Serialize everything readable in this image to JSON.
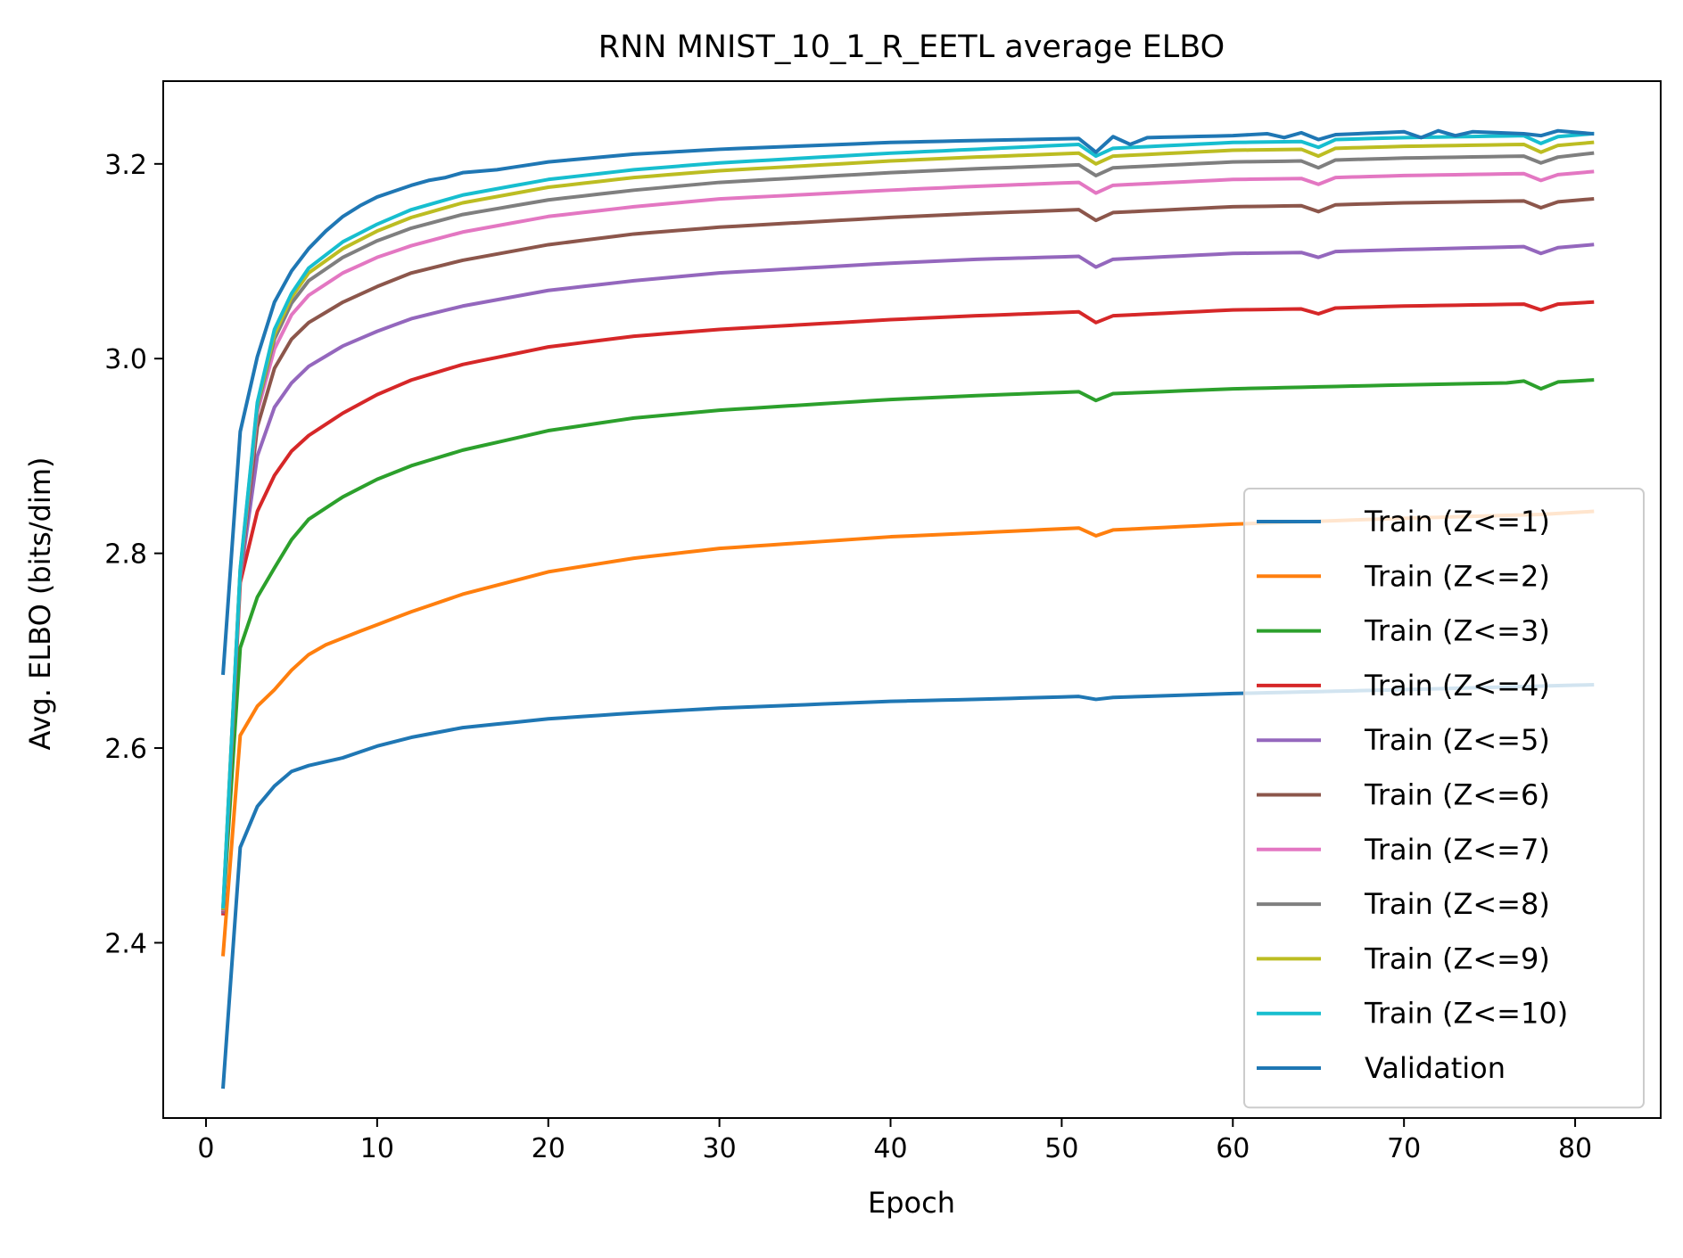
{
  "chart_data": {
    "type": "line",
    "title": "RNN MNIST_10_1_R_EETL average ELBO",
    "xlabel": "Epoch",
    "ylabel": "Avg. ELBO (bits/dim)",
    "xlim": [
      -2.5,
      85
    ],
    "ylim": [
      2.22,
      3.285
    ],
    "xticks": [
      0,
      10,
      20,
      30,
      40,
      50,
      60,
      70,
      80
    ],
    "xtick_labels": [
      "0",
      "10",
      "20",
      "30",
      "40",
      "50",
      "60",
      "70",
      "80"
    ],
    "yticks": [
      2.4,
      2.6,
      2.8,
      3.0,
      3.2
    ],
    "ytick_labels": [
      "2.4",
      "2.6",
      "2.8",
      "3.0",
      "3.2"
    ],
    "grid": false,
    "legend_position": "lower-right",
    "x_start": 1,
    "x_end": 81,
    "series": [
      {
        "name": "Train (Z<=1)",
        "color": "#1f77b4",
        "points": [
          [
            1,
            2.252
          ],
          [
            2,
            2.498
          ],
          [
            3,
            2.54
          ],
          [
            4,
            2.561
          ],
          [
            5,
            2.576
          ],
          [
            6,
            2.582
          ],
          [
            8,
            2.59
          ],
          [
            10,
            2.602
          ],
          [
            12,
            2.611
          ],
          [
            15,
            2.621
          ],
          [
            20,
            2.63
          ],
          [
            25,
            2.636
          ],
          [
            30,
            2.641
          ],
          [
            40,
            2.648
          ],
          [
            45,
            2.65
          ],
          [
            51,
            2.653
          ],
          [
            52,
            2.65
          ],
          [
            53,
            2.652
          ],
          [
            60,
            2.656
          ],
          [
            70,
            2.66
          ],
          [
            81,
            2.665
          ]
        ]
      },
      {
        "name": "Train (Z<=2)",
        "color": "#ff7f0e",
        "points": [
          [
            1,
            2.388
          ],
          [
            2,
            2.613
          ],
          [
            3,
            2.643
          ],
          [
            4,
            2.66
          ],
          [
            5,
            2.68
          ],
          [
            6,
            2.696
          ],
          [
            7,
            2.706
          ],
          [
            9,
            2.72
          ],
          [
            12,
            2.74
          ],
          [
            15,
            2.758
          ],
          [
            20,
            2.781
          ],
          [
            25,
            2.795
          ],
          [
            30,
            2.805
          ],
          [
            40,
            2.817
          ],
          [
            45,
            2.821
          ],
          [
            51,
            2.826
          ],
          [
            52,
            2.818
          ],
          [
            53,
            2.824
          ],
          [
            60,
            2.83
          ],
          [
            70,
            2.836
          ],
          [
            78,
            2.84
          ],
          [
            81,
            2.843
          ]
        ]
      },
      {
        "name": "Train (Z<=3)",
        "color": "#2ca02c",
        "points": [
          [
            1,
            2.432
          ],
          [
            2,
            2.703
          ],
          [
            3,
            2.755
          ],
          [
            4,
            2.785
          ],
          [
            5,
            2.814
          ],
          [
            6,
            2.835
          ],
          [
            8,
            2.858
          ],
          [
            10,
            2.876
          ],
          [
            12,
            2.89
          ],
          [
            15,
            2.906
          ],
          [
            20,
            2.926
          ],
          [
            25,
            2.939
          ],
          [
            30,
            2.947
          ],
          [
            40,
            2.958
          ],
          [
            45,
            2.962
          ],
          [
            51,
            2.966
          ],
          [
            52,
            2.957
          ],
          [
            53,
            2.964
          ],
          [
            60,
            2.969
          ],
          [
            70,
            2.973
          ],
          [
            76,
            2.975
          ],
          [
            77,
            2.977
          ],
          [
            78,
            2.969
          ],
          [
            79,
            2.976
          ],
          [
            81,
            2.978
          ]
        ]
      },
      {
        "name": "Train (Z<=4)",
        "color": "#d62728",
        "points": [
          [
            1,
            2.43
          ],
          [
            2,
            2.77
          ],
          [
            3,
            2.843
          ],
          [
            4,
            2.88
          ],
          [
            5,
            2.905
          ],
          [
            6,
            2.921
          ],
          [
            8,
            2.944
          ],
          [
            10,
            2.963
          ],
          [
            12,
            2.978
          ],
          [
            15,
            2.994
          ],
          [
            20,
            3.012
          ],
          [
            25,
            3.023
          ],
          [
            30,
            3.03
          ],
          [
            40,
            3.04
          ],
          [
            45,
            3.044
          ],
          [
            51,
            3.048
          ],
          [
            52,
            3.037
          ],
          [
            53,
            3.044
          ],
          [
            60,
            3.05
          ],
          [
            64,
            3.051
          ],
          [
            65,
            3.046
          ],
          [
            66,
            3.052
          ],
          [
            70,
            3.054
          ],
          [
            77,
            3.056
          ],
          [
            78,
            3.05
          ],
          [
            79,
            3.056
          ],
          [
            81,
            3.058
          ]
        ]
      },
      {
        "name": "Train (Z<=5)",
        "color": "#9467bd",
        "points": [
          [
            1,
            2.432
          ],
          [
            2,
            2.775
          ],
          [
            3,
            2.9
          ],
          [
            4,
            2.95
          ],
          [
            5,
            2.975
          ],
          [
            6,
            2.992
          ],
          [
            8,
            3.013
          ],
          [
            10,
            3.028
          ],
          [
            12,
            3.041
          ],
          [
            15,
            3.054
          ],
          [
            20,
            3.07
          ],
          [
            25,
            3.08
          ],
          [
            30,
            3.088
          ],
          [
            40,
            3.098
          ],
          [
            45,
            3.102
          ],
          [
            51,
            3.105
          ],
          [
            52,
            3.094
          ],
          [
            53,
            3.102
          ],
          [
            60,
            3.108
          ],
          [
            64,
            3.109
          ],
          [
            65,
            3.104
          ],
          [
            66,
            3.11
          ],
          [
            70,
            3.112
          ],
          [
            77,
            3.115
          ],
          [
            78,
            3.108
          ],
          [
            79,
            3.114
          ],
          [
            81,
            3.117
          ]
        ]
      },
      {
        "name": "Train (Z<=6)",
        "color": "#8c564b",
        "points": [
          [
            1,
            2.433
          ],
          [
            2,
            2.778
          ],
          [
            3,
            2.93
          ],
          [
            4,
            2.99
          ],
          [
            5,
            3.02
          ],
          [
            6,
            3.037
          ],
          [
            8,
            3.058
          ],
          [
            10,
            3.074
          ],
          [
            12,
            3.088
          ],
          [
            15,
            3.101
          ],
          [
            20,
            3.117
          ],
          [
            25,
            3.128
          ],
          [
            30,
            3.135
          ],
          [
            40,
            3.145
          ],
          [
            45,
            3.149
          ],
          [
            51,
            3.153
          ],
          [
            52,
            3.142
          ],
          [
            53,
            3.15
          ],
          [
            60,
            3.156
          ],
          [
            64,
            3.157
          ],
          [
            65,
            3.151
          ],
          [
            66,
            3.158
          ],
          [
            70,
            3.16
          ],
          [
            77,
            3.162
          ],
          [
            78,
            3.155
          ],
          [
            79,
            3.161
          ],
          [
            81,
            3.164
          ]
        ]
      },
      {
        "name": "Train (Z<=7)",
        "color": "#e377c2",
        "points": [
          [
            1,
            2.434
          ],
          [
            2,
            2.78
          ],
          [
            3,
            2.945
          ],
          [
            4,
            3.01
          ],
          [
            5,
            3.045
          ],
          [
            6,
            3.065
          ],
          [
            8,
            3.088
          ],
          [
            10,
            3.104
          ],
          [
            12,
            3.116
          ],
          [
            15,
            3.13
          ],
          [
            20,
            3.146
          ],
          [
            25,
            3.156
          ],
          [
            30,
            3.164
          ],
          [
            40,
            3.173
          ],
          [
            45,
            3.177
          ],
          [
            51,
            3.181
          ],
          [
            52,
            3.17
          ],
          [
            53,
            3.178
          ],
          [
            60,
            3.184
          ],
          [
            64,
            3.185
          ],
          [
            65,
            3.179
          ],
          [
            66,
            3.186
          ],
          [
            70,
            3.188
          ],
          [
            77,
            3.19
          ],
          [
            78,
            3.183
          ],
          [
            79,
            3.189
          ],
          [
            81,
            3.192
          ]
        ]
      },
      {
        "name": "Train (Z<=8)",
        "color": "#7f7f7f",
        "points": [
          [
            1,
            2.435
          ],
          [
            2,
            2.782
          ],
          [
            3,
            2.95
          ],
          [
            4,
            3.02
          ],
          [
            5,
            3.057
          ],
          [
            6,
            3.08
          ],
          [
            8,
            3.104
          ],
          [
            10,
            3.121
          ],
          [
            12,
            3.134
          ],
          [
            15,
            3.148
          ],
          [
            20,
            3.163
          ],
          [
            25,
            3.173
          ],
          [
            30,
            3.181
          ],
          [
            40,
            3.191
          ],
          [
            45,
            3.195
          ],
          [
            51,
            3.199
          ],
          [
            52,
            3.188
          ],
          [
            53,
            3.196
          ],
          [
            60,
            3.202
          ],
          [
            64,
            3.203
          ],
          [
            65,
            3.196
          ],
          [
            66,
            3.204
          ],
          [
            70,
            3.206
          ],
          [
            77,
            3.208
          ],
          [
            78,
            3.201
          ],
          [
            79,
            3.207
          ],
          [
            81,
            3.211
          ]
        ]
      },
      {
        "name": "Train (Z<=9)",
        "color": "#bcbd22",
        "points": [
          [
            1,
            2.436
          ],
          [
            2,
            2.783
          ],
          [
            3,
            2.953
          ],
          [
            4,
            3.025
          ],
          [
            5,
            3.063
          ],
          [
            6,
            3.088
          ],
          [
            8,
            3.113
          ],
          [
            10,
            3.131
          ],
          [
            12,
            3.145
          ],
          [
            15,
            3.16
          ],
          [
            20,
            3.176
          ],
          [
            25,
            3.186
          ],
          [
            30,
            3.193
          ],
          [
            40,
            3.203
          ],
          [
            45,
            3.207
          ],
          [
            51,
            3.211
          ],
          [
            52,
            3.2
          ],
          [
            53,
            3.208
          ],
          [
            60,
            3.214
          ],
          [
            64,
            3.215
          ],
          [
            65,
            3.208
          ],
          [
            66,
            3.216
          ],
          [
            70,
            3.218
          ],
          [
            77,
            3.22
          ],
          [
            78,
            3.212
          ],
          [
            79,
            3.219
          ],
          [
            81,
            3.222
          ]
        ]
      },
      {
        "name": "Train (Z<=10)",
        "color": "#17becf",
        "points": [
          [
            1,
            2.437
          ],
          [
            2,
            2.784
          ],
          [
            3,
            2.955
          ],
          [
            4,
            3.03
          ],
          [
            5,
            3.067
          ],
          [
            6,
            3.093
          ],
          [
            8,
            3.12
          ],
          [
            10,
            3.138
          ],
          [
            12,
            3.153
          ],
          [
            15,
            3.168
          ],
          [
            20,
            3.184
          ],
          [
            25,
            3.194
          ],
          [
            30,
            3.201
          ],
          [
            40,
            3.211
          ],
          [
            45,
            3.215
          ],
          [
            51,
            3.22
          ],
          [
            52,
            3.208
          ],
          [
            53,
            3.216
          ],
          [
            60,
            3.222
          ],
          [
            64,
            3.223
          ],
          [
            65,
            3.217
          ],
          [
            66,
            3.225
          ],
          [
            70,
            3.227
          ],
          [
            77,
            3.229
          ],
          [
            78,
            3.221
          ],
          [
            79,
            3.228
          ],
          [
            81,
            3.231
          ]
        ]
      },
      {
        "name": "Validation",
        "color": "#1f77b4",
        "points": [
          [
            1,
            2.677
          ],
          [
            2,
            2.925
          ],
          [
            3,
            3.002
          ],
          [
            4,
            3.058
          ],
          [
            5,
            3.09
          ],
          [
            6,
            3.113
          ],
          [
            7,
            3.131
          ],
          [
            8,
            3.146
          ],
          [
            9,
            3.157
          ],
          [
            10,
            3.166
          ],
          [
            12,
            3.178
          ],
          [
            13,
            3.183
          ],
          [
            14,
            3.186
          ],
          [
            15,
            3.191
          ],
          [
            17,
            3.194
          ],
          [
            20,
            3.202
          ],
          [
            25,
            3.21
          ],
          [
            30,
            3.215
          ],
          [
            40,
            3.222
          ],
          [
            45,
            3.224
          ],
          [
            51,
            3.226
          ],
          [
            52,
            3.212
          ],
          [
            53,
            3.228
          ],
          [
            54,
            3.22
          ],
          [
            55,
            3.227
          ],
          [
            60,
            3.229
          ],
          [
            62,
            3.231
          ],
          [
            63,
            3.227
          ],
          [
            64,
            3.232
          ],
          [
            65,
            3.225
          ],
          [
            66,
            3.23
          ],
          [
            70,
            3.233
          ],
          [
            71,
            3.227
          ],
          [
            72,
            3.234
          ],
          [
            73,
            3.229
          ],
          [
            74,
            3.233
          ],
          [
            77,
            3.231
          ],
          [
            78,
            3.229
          ],
          [
            79,
            3.234
          ],
          [
            81,
            3.231
          ]
        ]
      }
    ]
  }
}
